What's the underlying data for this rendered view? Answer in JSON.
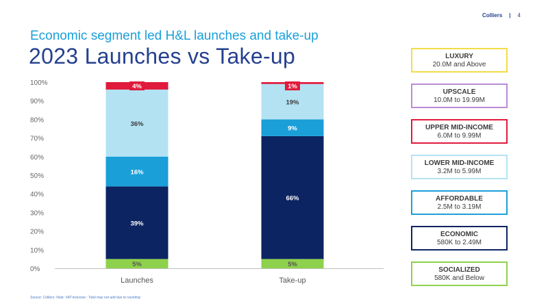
{
  "header": {
    "brand": "Colliers",
    "separator": "|",
    "page": "4"
  },
  "subtitle": "Economic segment led H&L launches and take-up",
  "title": "2023 Launches vs Take-up",
  "source": "Source: Colliers; Note: VAT-inclusive ; Total may not add due to rounding",
  "legend": [
    {
      "name": "LUXURY",
      "range": "20.0M and Above",
      "color": "#f3dc49"
    },
    {
      "name": "UPSCALE",
      "range": "10.0M to 19.99M",
      "color": "#b98bd6"
    },
    {
      "name": "UPPER MID-INCOME",
      "range": "6.0M to 9.99M",
      "color": "#e01a3c"
    },
    {
      "name": "LOWER MID-INCOME",
      "range": "3.2M to 5.99M",
      "color": "#b3e3f3"
    },
    {
      "name": "AFFORDABLE",
      "range": "2.5M to 3.19M",
      "color": "#1a9fd9"
    },
    {
      "name": "ECONOMIC",
      "range": "580K to 2.49M",
      "color": "#0c2461"
    },
    {
      "name": "SOCIALIZED",
      "range": "580K and Below",
      "color": "#8ed14c"
    }
  ],
  "chart_data": {
    "type": "bar",
    "stacked": true,
    "categories": [
      "Launches",
      "Take-up"
    ],
    "ylim": [
      0,
      100
    ],
    "yticks": [
      "0%",
      "10%",
      "20%",
      "30%",
      "40%",
      "50%",
      "60%",
      "70%",
      "80%",
      "90%",
      "100%"
    ],
    "series": [
      {
        "name": "SOCIALIZED",
        "color": "#8ed14c",
        "text_color": "#555555",
        "values": [
          5,
          5
        ],
        "labels": [
          "5%",
          "5%"
        ]
      },
      {
        "name": "ECONOMIC",
        "color": "#0c2461",
        "text_color": "#ffffff",
        "values": [
          39,
          66
        ],
        "labels": [
          "39%",
          "66%"
        ]
      },
      {
        "name": "AFFORDABLE",
        "color": "#1a9fd9",
        "text_color": "#ffffff",
        "values": [
          16,
          9
        ],
        "labels": [
          "16%",
          "9%"
        ]
      },
      {
        "name": "LOWER MID-INCOME",
        "color": "#b3e3f3",
        "text_color": "#3a3a3a",
        "values": [
          36,
          19
        ],
        "labels": [
          "36%",
          "19%"
        ]
      },
      {
        "name": "UPPER MID-INCOME",
        "color": "#e01a3c",
        "text_color": "#ffffff",
        "values": [
          4,
          1
        ],
        "labels": [
          "4%",
          "1%"
        ]
      }
    ]
  }
}
